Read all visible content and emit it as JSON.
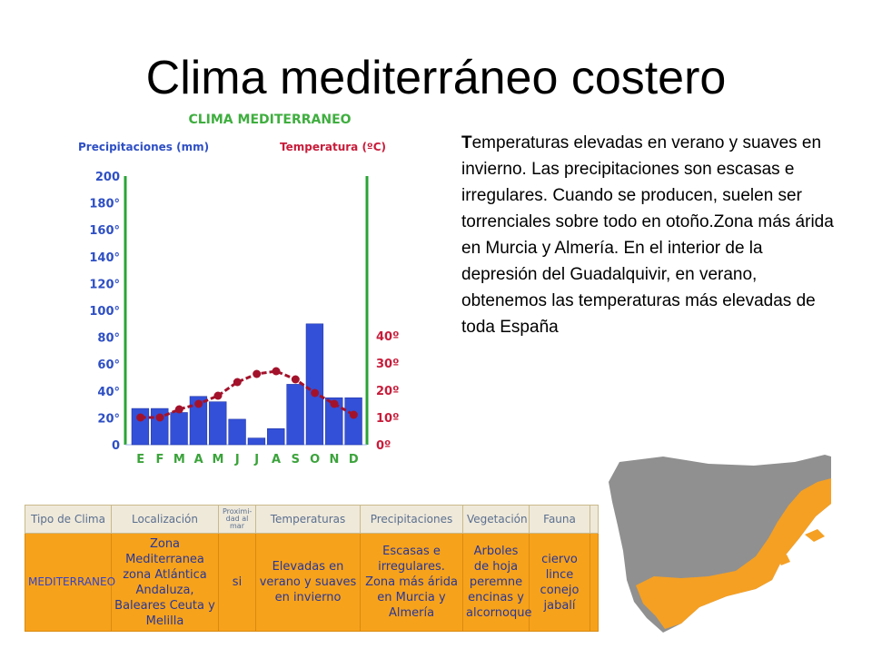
{
  "slide": {
    "title": "Clima mediterráneo costero",
    "description_first_letter": "T",
    "description_rest": "emperaturas elevadas en verano y suaves en invierno. Las precipitaciones son escasas e irregulares. Cuando se producen, suelen ser torrenciales sobre todo en otoño.Zona más árida en Murcia y Almería. En el interior de la depresión del Guadalquivir, en verano, obtenemos las temperaturas más elevadas de toda España"
  },
  "chart_data": {
    "type": "bar",
    "title": "CLIMA MEDITERRANEO",
    "ylabel_left": "Precipitaciones (mm)",
    "ylabel_right": "Temperatura (ºC)",
    "categories": [
      "E",
      "F",
      "M",
      "A",
      "M",
      "J",
      "J",
      "A",
      "S",
      "O",
      "N",
      "D"
    ],
    "left_ticks": [
      "200",
      "180°",
      "160°",
      "140°",
      "120°",
      "100°",
      "80°",
      "60°",
      "40°",
      "20°",
      "0"
    ],
    "right_ticks": [
      "40º",
      "30º",
      "20º",
      "10º",
      "0º"
    ],
    "ylim_left": [
      0,
      200
    ],
    "ylim_right": [
      0,
      40
    ],
    "series": [
      {
        "name": "Precipitaciones (mm)",
        "type": "bar",
        "axis": "left",
        "values": [
          27,
          27,
          24,
          36,
          32,
          19,
          5,
          12,
          45,
          90,
          35,
          35
        ]
      },
      {
        "name": "Temperatura (ºC)",
        "type": "line",
        "axis": "right",
        "values": [
          10,
          10,
          13,
          15,
          18,
          23,
          26,
          27,
          24,
          19,
          15,
          11
        ]
      }
    ],
    "colors": {
      "bar": "#3350d8",
      "line": "#a3122b",
      "left_axis": "#2e4fc4",
      "right_axis": "#c81c3a",
      "axis_line": "#2aa336",
      "category": "#3ba33b",
      "title": "#3fae3f"
    }
  },
  "table": {
    "headers": [
      "Tipo de Clima",
      "Localización",
      "Proximi-dad al mar",
      "Temperaturas",
      "Precipitaciones",
      "Vegetación",
      "Fauna",
      ""
    ],
    "row": [
      "MEDITERRANEO",
      "Zona Mediterranea zona Atlántica Andaluza, Baleares Ceuta y Melilla",
      "si",
      "Elevadas en verano y suaves en invierno",
      "Escasas e irregulares. Zona más árida en Murcia y Almería",
      "Arboles de hoja peremne encinas y alcornoque",
      "ciervo lince conejo jabalí",
      ""
    ]
  },
  "map": {
    "land_color": "#909090",
    "highlight_color": "#f5a023"
  }
}
